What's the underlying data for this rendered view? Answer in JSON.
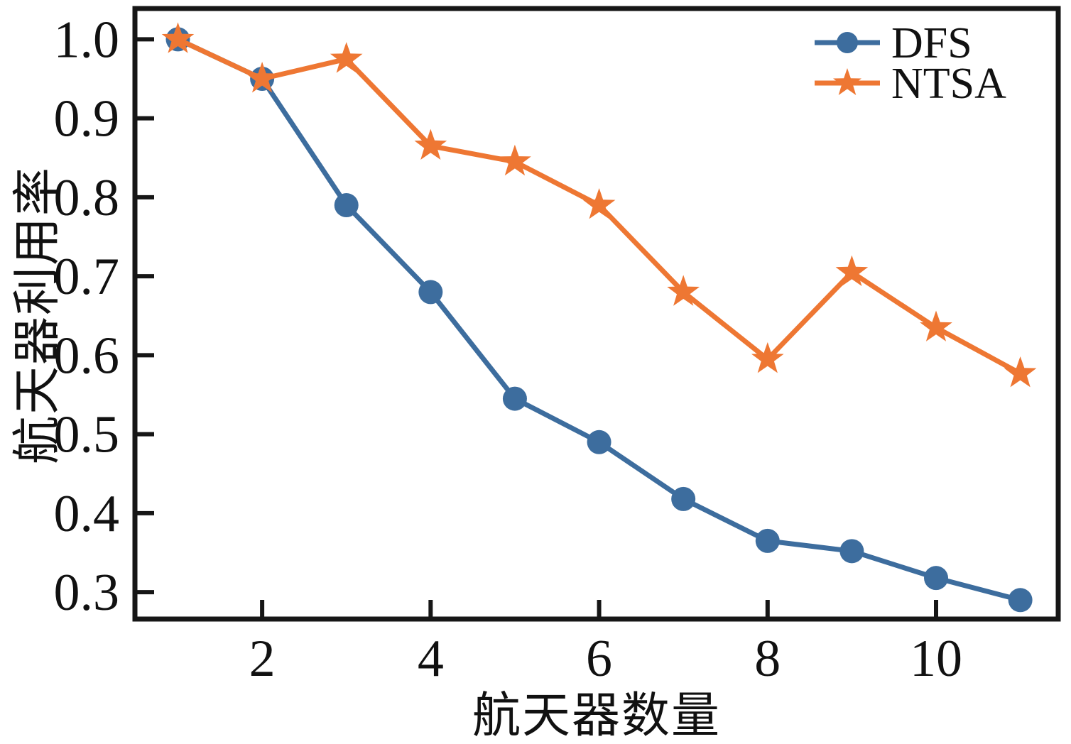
{
  "figure": {
    "background": "#ffffff",
    "text_color": "#111111"
  },
  "chart_data": {
    "type": "line",
    "title": "",
    "xlabel": "航天器数量",
    "ylabel": "航天器利用率",
    "x": [
      1,
      2,
      3,
      4,
      5,
      6,
      7,
      8,
      9,
      10,
      11
    ],
    "series": [
      {
        "name": "DFS",
        "color": "#3d6d9e",
        "marker": "circle",
        "values": [
          1.0,
          0.95,
          0.79,
          0.68,
          0.545,
          0.49,
          0.418,
          0.365,
          0.352,
          0.318,
          0.29
        ]
      },
      {
        "name": "NTSA",
        "color": "#ee7733",
        "marker": "star",
        "values": [
          1.0,
          0.95,
          0.975,
          0.865,
          0.845,
          0.79,
          0.68,
          0.595,
          0.705,
          0.635,
          0.577
        ]
      }
    ],
    "xticks": [
      2,
      4,
      6,
      8,
      10
    ],
    "xtick_labels": [
      "2",
      "4",
      "6",
      "8",
      "10"
    ],
    "yticks": [
      0.3,
      0.4,
      0.5,
      0.6,
      0.7,
      0.8,
      0.9,
      1.0
    ],
    "ytick_labels": [
      "0.3",
      "0.4",
      "0.5",
      "0.6",
      "0.7",
      "0.8",
      "0.9",
      "1.0"
    ],
    "xlim": [
      0.49,
      11.45
    ],
    "ylim": [
      0.266,
      1.039
    ],
    "grid": false,
    "legend_position": "upper right",
    "axis_color": "#161616"
  }
}
